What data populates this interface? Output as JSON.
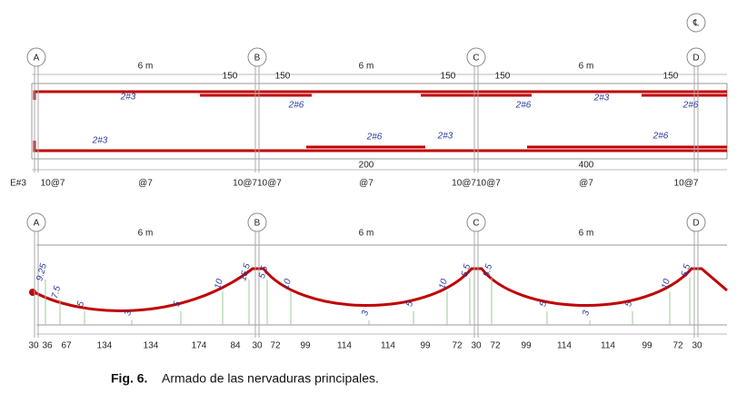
{
  "centerline": "℄",
  "top": {
    "axes": [
      "A",
      "B",
      "C",
      "D"
    ],
    "spans": [
      "6 m",
      "6 m",
      "6 m"
    ],
    "dims": [
      "150",
      "150",
      "150",
      "150",
      "150"
    ],
    "bars": [
      "2#3",
      "2#6",
      "2#6",
      "2#3",
      "2#6",
      "2#3",
      "2#6",
      "2#3",
      "2#6"
    ],
    "lower_dims": [
      "200",
      "400"
    ],
    "stirrups": [
      "E#3",
      "10@7",
      "@7",
      "10@710@7",
      "@7",
      "10@710@7",
      "@7",
      "10@7"
    ]
  },
  "bottom": {
    "axes": [
      "A",
      "B",
      "C",
      "D"
    ],
    "spans": [
      "6 m",
      "6 m",
      "6 m"
    ],
    "ordinates": [
      "9.25",
      "7.5",
      "5",
      "3",
      "5",
      "10",
      "15.5",
      "5.5",
      "10",
      "3",
      "5",
      "10",
      "5.5",
      "5.5",
      "5",
      "3",
      "5",
      "10",
      "5.5"
    ],
    "dims": [
      "30",
      "36",
      "67",
      "134",
      "134",
      "174",
      "84",
      "30",
      "72",
      "99",
      "114",
      "114",
      "99",
      "72",
      "30",
      "72",
      "99",
      "114",
      "114",
      "99",
      "72",
      "30"
    ]
  },
  "caption": {
    "label": "Fig. 6.",
    "text": "Armado de las nervaduras principales."
  }
}
